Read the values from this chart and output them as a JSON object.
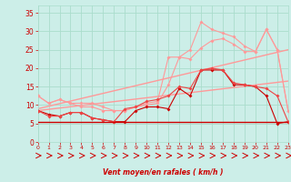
{
  "xlabel": "Vent moyen/en rafales ( km/h )",
  "background_color": "#cceee8",
  "grid_color": "#aaddcc",
  "text_color": "#cc0000",
  "x": [
    0,
    1,
    2,
    3,
    4,
    5,
    6,
    7,
    8,
    9,
    10,
    11,
    12,
    13,
    14,
    15,
    16,
    17,
    18,
    19,
    20,
    21,
    22,
    23
  ],
  "line_flat": [
    5.5,
    5.5,
    5.5,
    5.5,
    5.5,
    5.5,
    5.5,
    5.5,
    5.5,
    5.5,
    5.5,
    5.5,
    5.5,
    5.5,
    5.5,
    5.5,
    5.5,
    5.5,
    5.5,
    5.5,
    5.5,
    5.5,
    5.5,
    5.5
  ],
  "line_dark1": [
    8.5,
    7.5,
    7.0,
    8.0,
    8.0,
    6.5,
    6.0,
    5.5,
    5.5,
    8.5,
    9.5,
    9.5,
    9.0,
    14.5,
    12.5,
    19.5,
    19.5,
    19.5,
    15.5,
    15.5,
    15.0,
    12.5,
    5.0,
    5.5
  ],
  "line_dark2": [
    8.5,
    7.0,
    7.0,
    8.0,
    8.0,
    6.5,
    6.0,
    5.5,
    9.0,
    9.5,
    11.0,
    11.5,
    12.5,
    15.0,
    14.5,
    19.5,
    20.0,
    19.5,
    16.0,
    15.5,
    15.0,
    14.5,
    12.5,
    5.5
  ],
  "line_light1": [
    12.5,
    10.5,
    11.5,
    10.5,
    9.5,
    9.5,
    8.5,
    8.5,
    8.5,
    9.5,
    10.0,
    10.5,
    15.5,
    23.0,
    22.5,
    25.5,
    27.5,
    28.0,
    26.5,
    24.5,
    24.5,
    30.5,
    25.0,
    8.5
  ],
  "line_light2": [
    12.5,
    10.5,
    11.5,
    10.5,
    10.5,
    10.5,
    9.5,
    8.5,
    8.5,
    9.5,
    10.5,
    11.0,
    23.0,
    23.0,
    25.0,
    32.5,
    30.5,
    29.5,
    28.5,
    26.0,
    24.5,
    30.5,
    25.0,
    8.5
  ],
  "trend1_x": [
    0,
    23
  ],
  "trend1_y": [
    9.0,
    25.0
  ],
  "trend2_x": [
    0,
    23
  ],
  "trend2_y": [
    8.5,
    16.5
  ],
  "ylim": [
    0,
    37
  ],
  "xlim": [
    0,
    23
  ],
  "yticks": [
    0,
    5,
    10,
    15,
    20,
    25,
    30,
    35
  ],
  "xticks": [
    0,
    1,
    2,
    3,
    4,
    5,
    6,
    7,
    8,
    9,
    10,
    11,
    12,
    13,
    14,
    15,
    16,
    17,
    18,
    19,
    20,
    21,
    22,
    23
  ],
  "c_light": "#ff9999",
  "c_dark": "#cc0000",
  "c_mid": "#ee4444"
}
